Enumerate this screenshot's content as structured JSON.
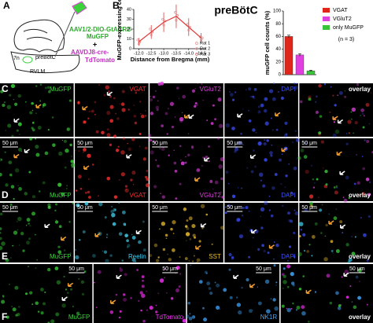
{
  "panel_a": {
    "letter": "A",
    "vector_1": [
      "AAV1/2-DIO-GtACR2-",
      "MuGFP"
    ],
    "plus": "+",
    "vector_2": [
      "AAVDJ8-cre-",
      "TdTomato"
    ],
    "labels": [
      "7n",
      "preBötC",
      "RVLM"
    ]
  },
  "chart_data": [
    {
      "type": "line",
      "letter": "B",
      "title": "preBötC",
      "xlabel": "Distance from Bregma (mm)",
      "ylabel": "MuGFP-expressing cells",
      "x": [
        -12,
        -12.5,
        -13,
        -13.5,
        -14,
        -14.5
      ],
      "xlim": [
        -11.8,
        -14.7
      ],
      "xticks": [
        {
          "value": -12,
          "label": "-12.0"
        },
        {
          "value": -12.5,
          "label": "-12.5"
        },
        {
          "value": -13,
          "label": "-13.0"
        },
        {
          "value": -13.5,
          "label": "-13.5"
        },
        {
          "value": -14,
          "label": "-14.0"
        },
        {
          "value": -14.5,
          "label": "-14.5"
        }
      ],
      "ylim": [
        0,
        40
      ],
      "yticks": [
        0,
        10,
        20,
        30,
        40
      ],
      "series": [
        {
          "name": "Rat 1",
          "color": "#f08a8a",
          "values": [
            9,
            20,
            30,
            37,
            25,
            12
          ]
        },
        {
          "name": "Rat 2",
          "color": "#e9a0a0",
          "values": [
            5,
            14,
            24,
            29,
            19,
            9
          ]
        },
        {
          "name": "Rat 3",
          "color": "#e07070",
          "values": [
            7,
            17,
            28,
            34,
            22,
            11
          ]
        },
        {
          "color": "#e03c3c",
          "values": [
            7,
            17,
            27,
            33,
            22,
            11
          ],
          "errors": [
            4,
            7,
            10,
            12,
            9,
            5
          ]
        }
      ]
    },
    {
      "type": "bar",
      "ylabel": "muGFP cell counts (%)",
      "annotation": "(n = 3)",
      "categories": [
        "VGAT",
        "VGluT2",
        "only MuGFP"
      ],
      "values": [
        60,
        31,
        6
      ],
      "errors": [
        2,
        2,
        1
      ],
      "colors": [
        "#e0251b",
        "#e040e0",
        "#3ac43a"
      ],
      "ylim": [
        0,
        100
      ],
      "yticks": [
        0,
        20,
        40,
        60,
        80,
        100
      ]
    }
  ],
  "rows": [
    {
      "letter": "C",
      "tiles": [
        {
          "label": "MuGFP",
          "color": "#3ad43a"
        },
        {
          "label": "VGAT",
          "color": "#ff3030"
        },
        {
          "label": "VGluT2",
          "color": "#e040e0"
        },
        {
          "label": "DAPI",
          "color": "#3a50ff"
        },
        {
          "label": "overlay",
          "color": "#ffffff"
        }
      ]
    },
    {
      "letter": "D",
      "tiles": [
        {
          "label": "MuGFP",
          "color": "#3ad43a",
          "scale": "50 μm"
        },
        {
          "label": "VGAT",
          "color": "#ff3030",
          "scale": "50 μm"
        },
        {
          "label": "VGluT2",
          "color": "#e040e0",
          "scale": "50 μm"
        },
        {
          "label": "DAPI",
          "color": "#3a50ff",
          "scale": "50 μm"
        },
        {
          "label": "overlay",
          "color": "#ffffff",
          "scale": "50 μm"
        }
      ]
    },
    {
      "letter": "E",
      "tiles": [
        {
          "label": "MuGFP",
          "color": "#3ad43a",
          "scale": "50 μm"
        },
        {
          "label": "Reelin",
          "color": "#40d0f0",
          "scale": "50 μm"
        },
        {
          "label": "SST",
          "color": "#f0c030",
          "scale": "50 μm"
        },
        {
          "label": "DAPI",
          "color": "#3a50ff",
          "scale": "50 μm"
        },
        {
          "label": "overlay",
          "color": "#ffffff",
          "scale": "50 μm"
        }
      ]
    },
    {
      "letter": "F",
      "tiles": [
        {
          "label": "MuGFP",
          "color": "#3ad43a",
          "scale": "50 μm"
        },
        {
          "label": "TdTomato",
          "color": "#ff30ff",
          "scale": "50 μm"
        },
        {
          "label": "NK1R",
          "color": "#40a8ff",
          "scale": "50 μm"
        },
        {
          "label": "overlay",
          "color": "#ffffff",
          "scale": "50 μm"
        }
      ]
    }
  ]
}
